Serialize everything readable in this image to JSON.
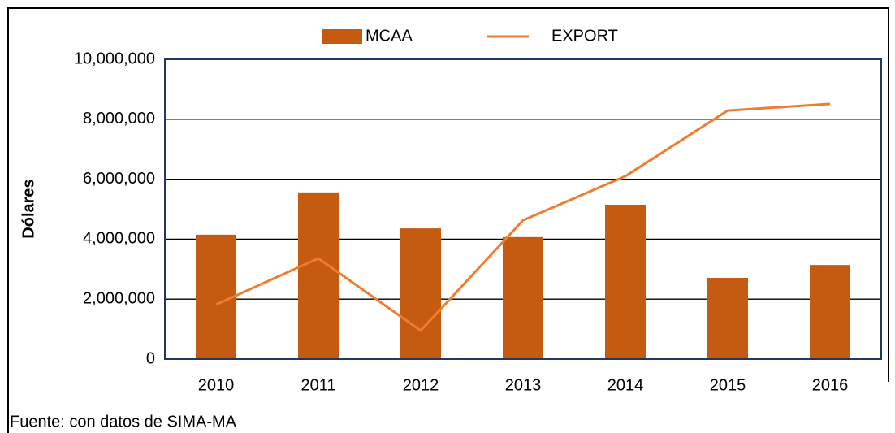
{
  "chart_data": {
    "type": "bar",
    "ylabel": "Dólares",
    "source": "Fuente: con datos de SIMA-MA",
    "categories": [
      "2010",
      "2011",
      "2012",
      "2013",
      "2014",
      "2015",
      "2016"
    ],
    "series": [
      {
        "name": "MCAA",
        "type": "bar",
        "color": "#c55a11",
        "values": [
          4150000,
          5560000,
          4360000,
          4070000,
          5150000,
          2710000,
          3140000
        ]
      },
      {
        "name": "EXPORT",
        "type": "line",
        "color": "#ed7d31",
        "values": [
          1820000,
          3360000,
          950000,
          4630000,
          6100000,
          8290000,
          8510000
        ]
      }
    ],
    "ylim": [
      0,
      10000000
    ],
    "yticks": [
      0,
      {
        "value": 2000000,
        "label": "2,000,000"
      },
      {
        "value": 4000000,
        "label": "4,000,000"
      },
      {
        "value": 6000000,
        "label": "6,000,000"
      },
      {
        "value": 8000000,
        "label": "8,000,000"
      },
      {
        "value": 10000000,
        "label": "10,000,000"
      }
    ],
    "grid": true,
    "legend": "top"
  }
}
